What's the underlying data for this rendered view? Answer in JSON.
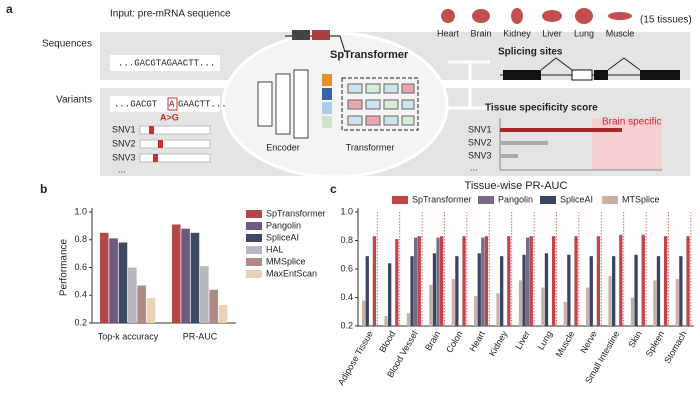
{
  "panel_labels": [
    "a",
    "b",
    "c"
  ],
  "diagram": {
    "input_label": "Input: pre-mRNA sequence",
    "tissues": [
      "Heart",
      "Brain",
      "Kidney",
      "Liver",
      "Lung",
      "Muscle"
    ],
    "tissue_count": "(15 tissues)",
    "row_sequences": "Sequences",
    "sequence": "...GACGTAGAACTT...",
    "row_variants": "Variants",
    "variant_left": "...GACGT",
    "variant_base": "A",
    "variant_right": "GAACTT...",
    "variant_change": "A>G",
    "snvs": [
      "SNV1",
      "SNV2",
      "SNV3"
    ],
    "ellipsis": "...",
    "model_name": "SpTransformer",
    "encoder": "Encoder",
    "transformer": "Transformer",
    "splicing_sites": "Splicing sites",
    "tissue_score": "Tissue specificity score",
    "brain_specific": "Brain specific"
  },
  "chart_data": [
    {
      "type": "bar",
      "ylabel": "Performance",
      "categories": [
        "Top-k accuracy",
        "PR-AUC"
      ],
      "ylim": [
        0.2,
        1
      ],
      "yticks": [
        0.2,
        0.4,
        0.6,
        0.8,
        {
          "value": 1,
          "label": "1.0"
        }
      ],
      "series": [
        {
          "name": "SpTransformer",
          "color": "#b5484a",
          "values": [
            0.85,
            0.91
          ]
        },
        {
          "name": "Pangolin",
          "color": "#6e5a7e",
          "values": [
            0.81,
            0.88
          ]
        },
        {
          "name": "SpliceAI",
          "color": "#3d4a63",
          "values": [
            0.78,
            0.85
          ]
        },
        {
          "name": "HAL",
          "color": "#b8b8c2",
          "values": [
            0.6,
            0.61
          ]
        },
        {
          "name": "MMSplice",
          "color": "#b08a85",
          "values": [
            0.47,
            0.44
          ]
        },
        {
          "name": "MaxEntScan",
          "color": "#ead2b4",
          "values": [
            0.38,
            0.33
          ]
        }
      ]
    },
    {
      "type": "bar",
      "title": "Tissue-wise PR-AUC",
      "categories": [
        "Adipose Tissue",
        "Blood",
        "Blood Vessel",
        "Brain",
        "Colon",
        "Heart",
        "Kidney",
        "Liver",
        "Lung",
        "Muscle",
        "Nerve",
        "Small Intestine",
        "Skin",
        "Spleen",
        "Stomach"
      ],
      "ylim": [
        0.2,
        1
      ],
      "yticks": [
        0.2,
        0.4,
        0.6,
        0.8,
        {
          "value": 1,
          "label": "1.0"
        }
      ],
      "series": [
        {
          "name": "SpTransformer",
          "color": "#c0444a",
          "values": [
            0.83,
            0.81,
            0.83,
            0.83,
            0.83,
            0.83,
            0.83,
            0.83,
            0.83,
            0.83,
            0.83,
            0.84,
            0.84,
            0.83,
            0.83
          ]
        },
        {
          "name": "Pangolin",
          "color": "#7a6a8a",
          "values": [
            null,
            null,
            0.82,
            0.82,
            null,
            0.82,
            null,
            0.82,
            null,
            null,
            null,
            null,
            null,
            null,
            null
          ]
        },
        {
          "name": "SpliceAI",
          "color": "#3a4560",
          "values": [
            0.69,
            0.64,
            0.69,
            0.71,
            0.69,
            0.71,
            0.69,
            0.7,
            0.71,
            0.7,
            0.69,
            0.69,
            0.7,
            0.69,
            0.69
          ]
        },
        {
          "name": "MTSplice",
          "color": "#c8b0a8",
          "values": [
            0.38,
            0.27,
            0.29,
            0.49,
            0.53,
            0.41,
            0.43,
            0.52,
            0.47,
            0.37,
            0.47,
            0.55,
            0.4,
            0.52,
            0.53
          ]
        }
      ]
    }
  ]
}
